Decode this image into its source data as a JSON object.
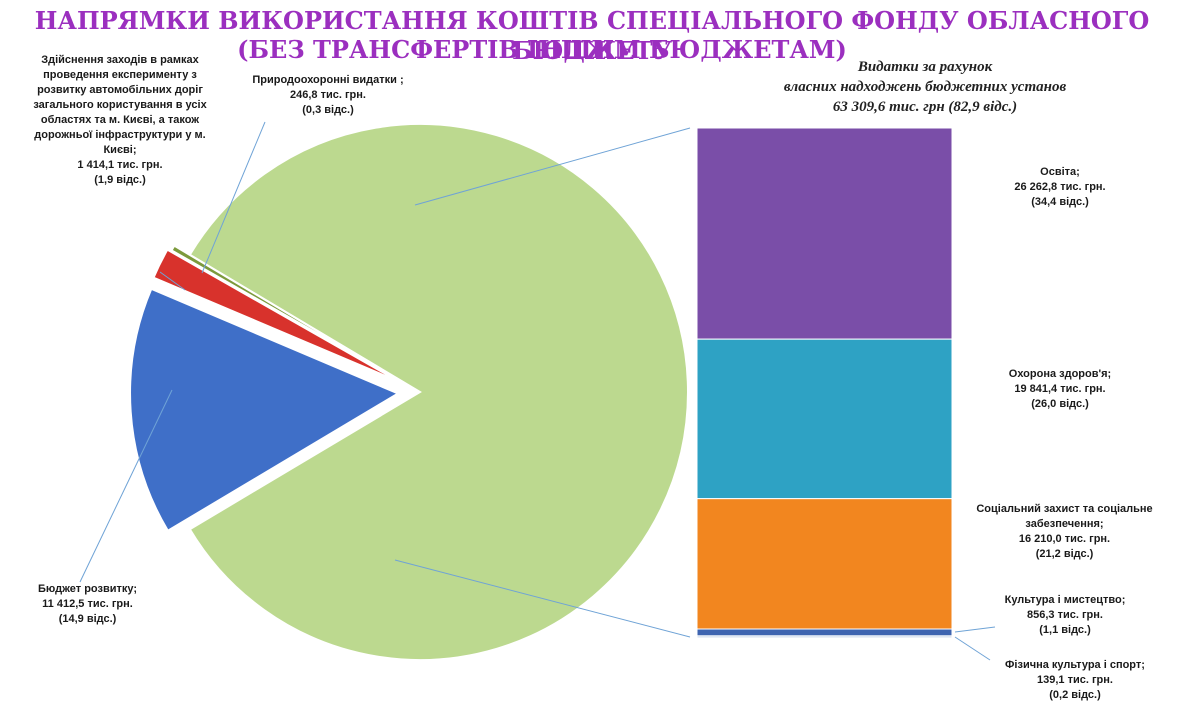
{
  "title": {
    "line1": "НАПРЯМКИ ВИКОРИСТАННЯ КОШТІВ СПЕЦІАЛЬНОГО ФОНДУ ОБЛАСНОГО БЮДЖЕТУ",
    "line2": "(БЕЗ ТРАНСФЕРТІВ ІНШИМ БЮДЖЕТАМ)"
  },
  "subtitle": {
    "line1": "Видатки за рахунок",
    "line2": "власних надходжень бюджетних установ",
    "line3": "63 309,6 тис. грн (82,9 відс.)"
  },
  "colors": {
    "own_revenue": "#bcd98f",
    "development": "#3f6fc8",
    "roads": "#d8322c",
    "environment": "#7c9a3c",
    "education": "#7a4ea8",
    "health": "#2ea2c4",
    "social": "#f2861f",
    "culture": "#3e64b0",
    "sport": "#c9d6ea"
  },
  "chart_data": [
    {
      "type": "pie",
      "slices": [
        {
          "key": "own_revenue",
          "value": 63309.6,
          "percent": 82.9
        },
        {
          "key": "development",
          "value": 11412.5,
          "percent": 14.9
        },
        {
          "key": "roads",
          "value": 1414.1,
          "percent": 1.9
        },
        {
          "key": "environment",
          "value": 246.8,
          "percent": 0.3
        }
      ],
      "labels": {
        "development": {
          "l1": "Бюджет розвитку;",
          "l2": "11 412,5 тис. грн.",
          "l3": "(14,9 відс.)"
        },
        "roads": {
          "l1": "Здійснення заходів в рамках",
          "l2": "проведення експерименту з",
          "l3": "розвитку автомобільних доріг",
          "l4": "загального користування в усіх",
          "l5": "областях та м. Києві, а також",
          "l6": "дорожньої інфраструктури у м.",
          "l7": "Києві;",
          "l8": "1 414,1 тис. грн.",
          "l9": "(1,9 відс.)"
        },
        "environment": {
          "l1": "Природоохоронні видатки ;",
          "l2": "246,8 тис. грн.",
          "l3": "(0,3 відс.)"
        }
      }
    },
    {
      "type": "bar",
      "stacked": true,
      "segments": [
        {
          "key": "education",
          "value": 26262.8,
          "percent": 34.4
        },
        {
          "key": "health",
          "value": 19841.4,
          "percent": 26.0
        },
        {
          "key": "social",
          "value": 16210.0,
          "percent": 21.2
        },
        {
          "key": "culture",
          "value": 856.3,
          "percent": 1.1
        },
        {
          "key": "sport",
          "value": 139.1,
          "percent": 0.2
        }
      ],
      "labels": {
        "education": {
          "l1": "Освіта;",
          "l2": "26 262,8 тис. грн.",
          "l3": "(34,4 відс.)"
        },
        "health": {
          "l1": "Охорона здоров'я;",
          "l2": "19 841,4 тис. грн.",
          "l3": "(26,0 відс.)"
        },
        "social": {
          "l1": "Соціальний захист та соціальне",
          "l2": "забезпечення;",
          "l3": "16 210,0 тис. грн.",
          "l4": "(21,2 відс.)"
        },
        "culture": {
          "l1": "Культура і мистецтво;",
          "l2": "856,3 тис. грн.",
          "l3": "(1,1 відс.)"
        },
        "sport": {
          "l1": "Фізична культура і спорт;",
          "l2": "139,1 тис. грн.",
          "l3": "(0,2 відс.)"
        }
      }
    }
  ]
}
